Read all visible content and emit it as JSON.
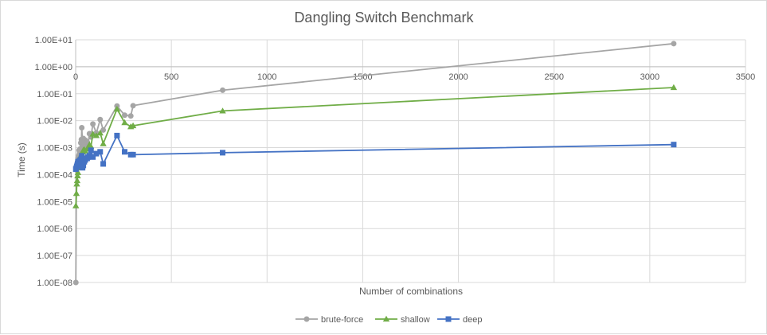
{
  "chart_data": {
    "type": "scatter",
    "title": "Dangling Switch Benchmark",
    "xlabel": "Number of combinations",
    "ylabel": "Time (s)",
    "xlim": [
      0,
      3500
    ],
    "ylim": [
      1e-08,
      10
    ],
    "y_scale": "log",
    "x_ticks": [
      0,
      500,
      1000,
      1500,
      2000,
      2500,
      3000,
      3500
    ],
    "x_tick_labels": [
      "0",
      "500",
      "1000",
      "1500",
      "2000",
      "2500",
      "3000",
      "3500"
    ],
    "y_ticks": [
      1e-08,
      1e-07,
      1e-06,
      1e-05,
      0.0001,
      0.001,
      0.01,
      0.1,
      1,
      10
    ],
    "y_tick_labels": [
      "1.00E-08",
      "1.00E-07",
      "1.00E-06",
      "1.00E-05",
      "1.00E-04",
      "1.00E-03",
      "1.00E-02",
      "1.00E-01",
      "1.00E+00",
      "1.00E+01"
    ],
    "grid": true,
    "legend_position": "bottom",
    "series": [
      {
        "name": "brute-force",
        "color": "#a5a5a5",
        "marker": "circle",
        "points": [
          [
            1,
            1e-08
          ],
          [
            4,
            0.00015
          ],
          [
            6,
            0.0002
          ],
          [
            8,
            0.00025
          ],
          [
            10,
            0.0003
          ],
          [
            12,
            0.0004
          ],
          [
            16,
            0.0005
          ],
          [
            18,
            0.0008
          ],
          [
            20,
            0.0006
          ],
          [
            24,
            0.0009
          ],
          [
            27,
            0.0015
          ],
          [
            30,
            0.002
          ],
          [
            32,
            0.0055
          ],
          [
            36,
            0.0011
          ],
          [
            40,
            0.0022
          ],
          [
            45,
            0.0012
          ],
          [
            50,
            0.0019
          ],
          [
            60,
            0.0016
          ],
          [
            64,
            0.0011
          ],
          [
            72,
            0.0033
          ],
          [
            80,
            0.0025
          ],
          [
            90,
            0.0075
          ],
          [
            108,
            0.0035
          ],
          [
            128,
            0.011
          ],
          [
            144,
            0.0045
          ],
          [
            216,
            0.035
          ],
          [
            256,
            0.016
          ],
          [
            288,
            0.015
          ],
          [
            300,
            0.036
          ],
          [
            768,
            0.135
          ],
          [
            3125,
            7.2
          ]
        ]
      },
      {
        "name": "shallow",
        "color": "#70ad47",
        "marker": "triangle",
        "points": [
          [
            1,
            7e-06
          ],
          [
            4,
            2e-05
          ],
          [
            6,
            4.5e-05
          ],
          [
            8,
            6e-05
          ],
          [
            10,
            9e-05
          ],
          [
            12,
            0.00012
          ],
          [
            16,
            0.00018
          ],
          [
            18,
            0.0002
          ],
          [
            20,
            0.00025
          ],
          [
            24,
            0.0003
          ],
          [
            27,
            0.0004
          ],
          [
            30,
            0.00055
          ],
          [
            32,
            0.0006
          ],
          [
            36,
            0.0007
          ],
          [
            40,
            0.0008
          ],
          [
            45,
            0.00085
          ],
          [
            50,
            0.00075
          ],
          [
            60,
            0.0009
          ],
          [
            64,
            0.00095
          ],
          [
            72,
            0.0013
          ],
          [
            80,
            0.0011
          ],
          [
            90,
            0.0032
          ],
          [
            108,
            0.0028
          ],
          [
            128,
            0.0035
          ],
          [
            144,
            0.0014
          ],
          [
            216,
            0.027
          ],
          [
            256,
            0.0085
          ],
          [
            288,
            0.006
          ],
          [
            300,
            0.0065
          ],
          [
            768,
            0.023
          ],
          [
            3125,
            0.17
          ]
        ]
      },
      {
        "name": "deep",
        "color": "#4472c4",
        "marker": "square",
        "points": [
          [
            1,
            0.00016
          ],
          [
            4,
            0.00018
          ],
          [
            6,
            0.0002
          ],
          [
            8,
            0.00022
          ],
          [
            10,
            0.00025
          ],
          [
            12,
            0.0003
          ],
          [
            16,
            0.00021
          ],
          [
            18,
            0.00028
          ],
          [
            20,
            0.00032
          ],
          [
            24,
            0.00035
          ],
          [
            27,
            0.00025
          ],
          [
            30,
            0.0004
          ],
          [
            32,
            0.0005
          ],
          [
            36,
            0.00018
          ],
          [
            40,
            0.00022
          ],
          [
            45,
            0.0003
          ],
          [
            50,
            0.00035
          ],
          [
            60,
            0.0004
          ],
          [
            64,
            0.00045
          ],
          [
            72,
            0.0005
          ],
          [
            80,
            0.0008
          ],
          [
            90,
            0.00045
          ],
          [
            108,
            0.0006
          ],
          [
            128,
            0.0007
          ],
          [
            144,
            0.00025
          ],
          [
            216,
            0.0028
          ],
          [
            256,
            0.0007
          ],
          [
            288,
            0.00055
          ],
          [
            300,
            0.00055
          ],
          [
            768,
            0.00065
          ],
          [
            3125,
            0.0013
          ]
        ]
      }
    ]
  }
}
